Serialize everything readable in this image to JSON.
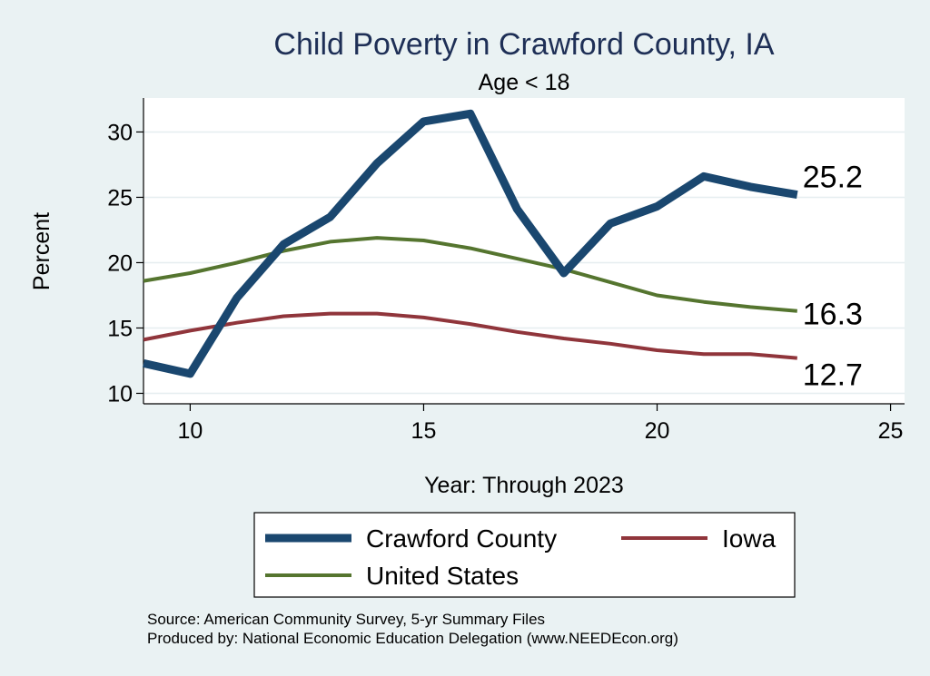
{
  "chart_data": {
    "type": "line",
    "title": "Child Poverty in Crawford County, IA",
    "subtitle": "Age < 18",
    "xlabel": "Year: Through 2023",
    "ylabel": "Percent",
    "xlim": [
      9,
      25.3
    ],
    "ylim": [
      9.2,
      32.6
    ],
    "x_ticks": [
      10,
      15,
      20,
      25
    ],
    "y_ticks": [
      10,
      15,
      20,
      25,
      30
    ],
    "grid": true,
    "legend_position": "bottom",
    "x": [
      9,
      10,
      11,
      12,
      13,
      14,
      15,
      16,
      17,
      18,
      19,
      20,
      21,
      22,
      23
    ],
    "series": [
      {
        "name": "Crawford County",
        "color": "#1a476f",
        "values": [
          12.3,
          11.5,
          17.3,
          21.4,
          23.5,
          27.6,
          30.8,
          31.4,
          24.1,
          19.2,
          23.0,
          24.3,
          26.6,
          25.8,
          25.2
        ],
        "end_label": "25.2"
      },
      {
        "name": "Iowa",
        "color": "#90353b",
        "values": [
          14.1,
          14.8,
          15.4,
          15.9,
          16.1,
          16.1,
          15.8,
          15.3,
          14.7,
          14.2,
          13.8,
          13.3,
          13.0,
          13.0,
          12.7
        ],
        "end_label": "12.7"
      },
      {
        "name": "United States",
        "color": "#55752f",
        "values": [
          18.6,
          19.2,
          20.0,
          20.9,
          21.6,
          21.9,
          21.7,
          21.1,
          20.3,
          19.5,
          18.5,
          17.5,
          17.0,
          16.6,
          16.3
        ],
        "end_label": "16.3"
      }
    ]
  },
  "footer": {
    "source": "Source: American Community Survey, 5-yr Summary Files",
    "produced_by": "Produced by: National Economic Education Delegation (www.NEEDEcon.org)"
  }
}
